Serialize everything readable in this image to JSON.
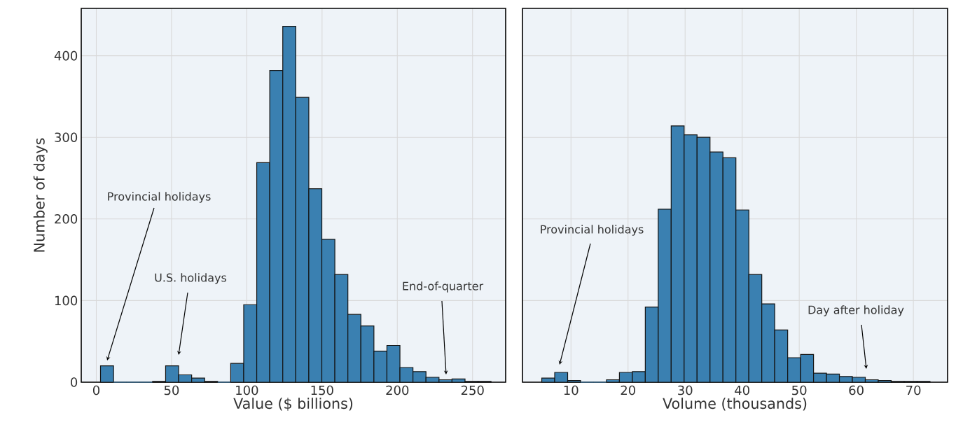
{
  "chart_data": [
    {
      "type": "histogram",
      "xlabel": "Value ($ billions)",
      "ylabel": "Number of days",
      "color": "#3a80b1",
      "grid": true,
      "bins": [
        2.8,
        11.45,
        20.1,
        28.75,
        37.4,
        46.05,
        54.7,
        63.35,
        72.0,
        80.65,
        89.3,
        97.95,
        106.6,
        115.25,
        123.9,
        132.55,
        141.2,
        149.85,
        158.5,
        167.15,
        175.8,
        184.45,
        193.1,
        201.75,
        210.4,
        219.05,
        227.7,
        236.35,
        245.0,
        253.65,
        262.3
      ],
      "values": [
        20,
        0,
        0,
        0,
        1,
        20,
        9,
        5,
        1,
        0,
        23,
        95,
        269,
        382,
        436,
        349,
        237,
        175,
        132,
        83,
        69,
        38,
        45,
        18,
        13,
        6,
        3,
        4,
        1,
        1
      ],
      "xlim": [
        -10,
        272
      ],
      "ylim": [
        0,
        458
      ],
      "xticks": [
        0,
        50,
        100,
        150,
        200,
        250
      ],
      "yticks": [
        0,
        100,
        200,
        300,
        400
      ],
      "annotations": [
        "Provincial holidays",
        "U.S. holidays",
        "End-of-quarter"
      ]
    },
    {
      "type": "histogram",
      "xlabel": "Volume (thousands)",
      "color": "#3a80b1",
      "grid": true,
      "tick_labels": "x",
      "bins": [
        4.88,
        7.148,
        9.416,
        11.684,
        13.952,
        16.22,
        18.488,
        20.756,
        23.024,
        25.292,
        27.56,
        29.828,
        32.096,
        34.364,
        36.632,
        38.9,
        41.168,
        43.436,
        45.704,
        47.972,
        50.24,
        52.508,
        54.776,
        57.044,
        59.312,
        61.58,
        63.848,
        66.116,
        68.384,
        70.652,
        72.92
      ],
      "values": [
        5,
        12,
        2,
        0,
        0,
        3,
        12,
        13,
        92,
        212,
        314,
        303,
        300,
        282,
        275,
        211,
        132,
        96,
        64,
        30,
        34,
        11,
        10,
        7,
        6,
        3,
        2,
        1,
        1,
        1
      ],
      "xlim": [
        1.5,
        76
      ],
      "ylim": [
        0,
        458
      ],
      "xticks": [
        10,
        20,
        30,
        40,
        50,
        60,
        70
      ],
      "yticks": [
        0,
        100,
        200,
        300,
        400
      ],
      "annotations": [
        "Provincial holidays",
        "Day after holiday"
      ]
    }
  ]
}
